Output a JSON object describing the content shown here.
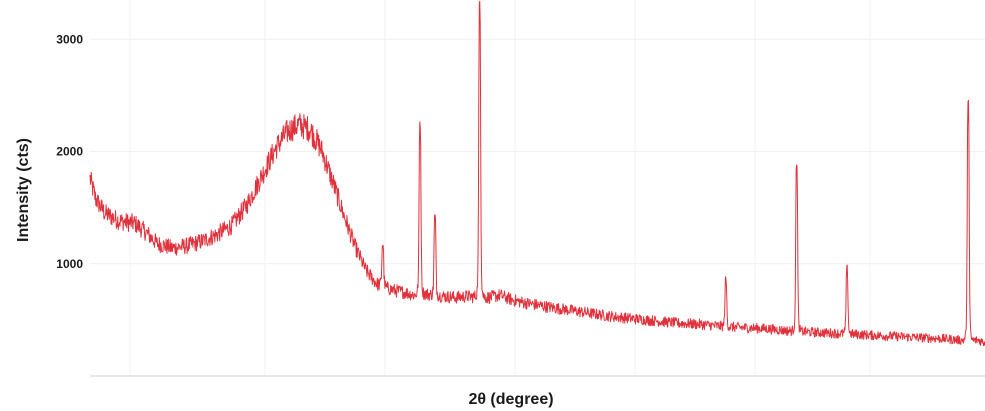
{
  "chart_data": {
    "type": "line",
    "title": "",
    "xlabel": "2θ (degree)",
    "ylabel": "Intensity (cts)",
    "x_tick_labels_shown": false,
    "ylim": [
      0,
      3350
    ],
    "yticks": [
      1000,
      2000,
      3000
    ],
    "grid": true,
    "series": [
      {
        "color": "#e0323c",
        "points": [
          [
            0,
            1760
          ],
          [
            1.5,
            1580
          ],
          [
            4,
            1450
          ],
          [
            8,
            1380
          ],
          [
            12,
            1360
          ],
          [
            15,
            1280
          ],
          [
            18,
            1180
          ],
          [
            22,
            1140
          ],
          [
            26,
            1160
          ],
          [
            30,
            1200
          ],
          [
            34,
            1260
          ],
          [
            38,
            1340
          ],
          [
            42,
            1520
          ],
          [
            46,
            1780
          ],
          [
            50,
            2040
          ],
          [
            53,
            2180
          ],
          [
            56,
            2240
          ],
          [
            59,
            2200
          ],
          [
            62,
            2020
          ],
          [
            65,
            1740
          ],
          [
            68,
            1440
          ],
          [
            71,
            1160
          ],
          [
            74,
            940
          ],
          [
            77,
            820
          ],
          [
            80,
            780
          ],
          [
            82,
            760
          ],
          [
            85,
            740
          ],
          [
            87,
            720
          ],
          [
            90,
            730
          ],
          [
            92,
            720
          ],
          [
            95,
            710
          ],
          [
            98,
            700
          ],
          [
            101,
            710
          ],
          [
            104,
            700
          ],
          [
            107,
            700
          ],
          [
            110,
            720
          ],
          [
            113,
            680
          ],
          [
            117,
            650
          ],
          [
            122,
            620
          ],
          [
            128,
            590
          ],
          [
            134,
            560
          ],
          [
            140,
            530
          ],
          [
            146,
            510
          ],
          [
            152,
            490
          ],
          [
            158,
            470
          ],
          [
            164,
            460
          ],
          [
            170,
            440
          ],
          [
            176,
            430
          ],
          [
            182,
            420
          ],
          [
            188,
            400
          ],
          [
            194,
            390
          ],
          [
            200,
            380
          ],
          [
            206,
            370
          ],
          [
            212,
            360
          ],
          [
            218,
            350
          ],
          [
            224,
            340
          ],
          [
            230,
            330
          ],
          [
            233,
            320
          ],
          [
            236,
            310
          ],
          [
            238,
            320
          ],
          [
            240,
            300
          ]
        ],
        "peaks": [
          {
            "x": 78.5,
            "height": 1180
          },
          {
            "x": 88.5,
            "height": 2260
          },
          {
            "x": 92.5,
            "height": 1420
          },
          {
            "x": 104.5,
            "height": 3350
          },
          {
            "x": 170.5,
            "height": 850
          },
          {
            "x": 189.5,
            "height": 1920
          },
          {
            "x": 203,
            "height": 950
          },
          {
            "x": 235.5,
            "height": 2490
          }
        ]
      }
    ]
  }
}
